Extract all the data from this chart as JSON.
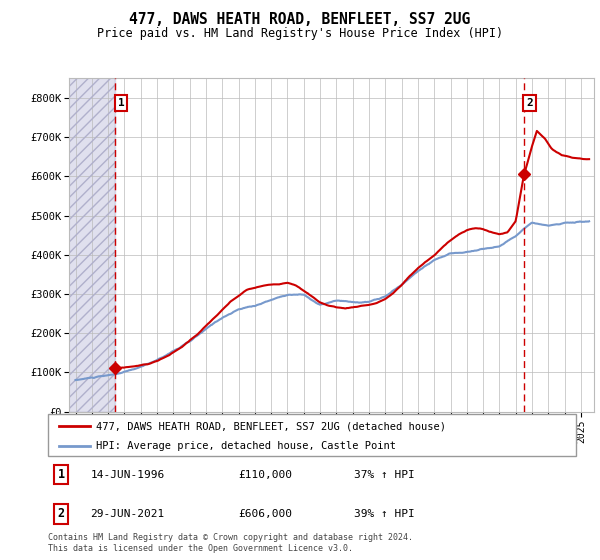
{
  "title": "477, DAWS HEATH ROAD, BENFLEET, SS7 2UG",
  "subtitle": "Price paid vs. HM Land Registry's House Price Index (HPI)",
  "ylim": [
    0,
    850000
  ],
  "yticks": [
    0,
    100000,
    200000,
    300000,
    400000,
    500000,
    600000,
    700000,
    800000
  ],
  "ytick_labels": [
    "£0",
    "£100K",
    "£200K",
    "£300K",
    "£400K",
    "£500K",
    "£600K",
    "£700K",
    "£800K"
  ],
  "xlim_start": 1993.6,
  "xlim_end": 2025.8,
  "purchase1_date": 1996.45,
  "purchase1_price": 110000,
  "purchase2_date": 2021.49,
  "purchase2_price": 606000,
  "legend_line1": "477, DAWS HEATH ROAD, BENFLEET, SS7 2UG (detached house)",
  "legend_line2": "HPI: Average price, detached house, Castle Point",
  "footer": "Contains HM Land Registry data © Crown copyright and database right 2024.\nThis data is licensed under the Open Government Licence v3.0.",
  "line_color_red": "#cc0000",
  "line_color_blue": "#7799cc",
  "grid_color": "#bbbbbb",
  "hatch_region_end": 1996.45
}
